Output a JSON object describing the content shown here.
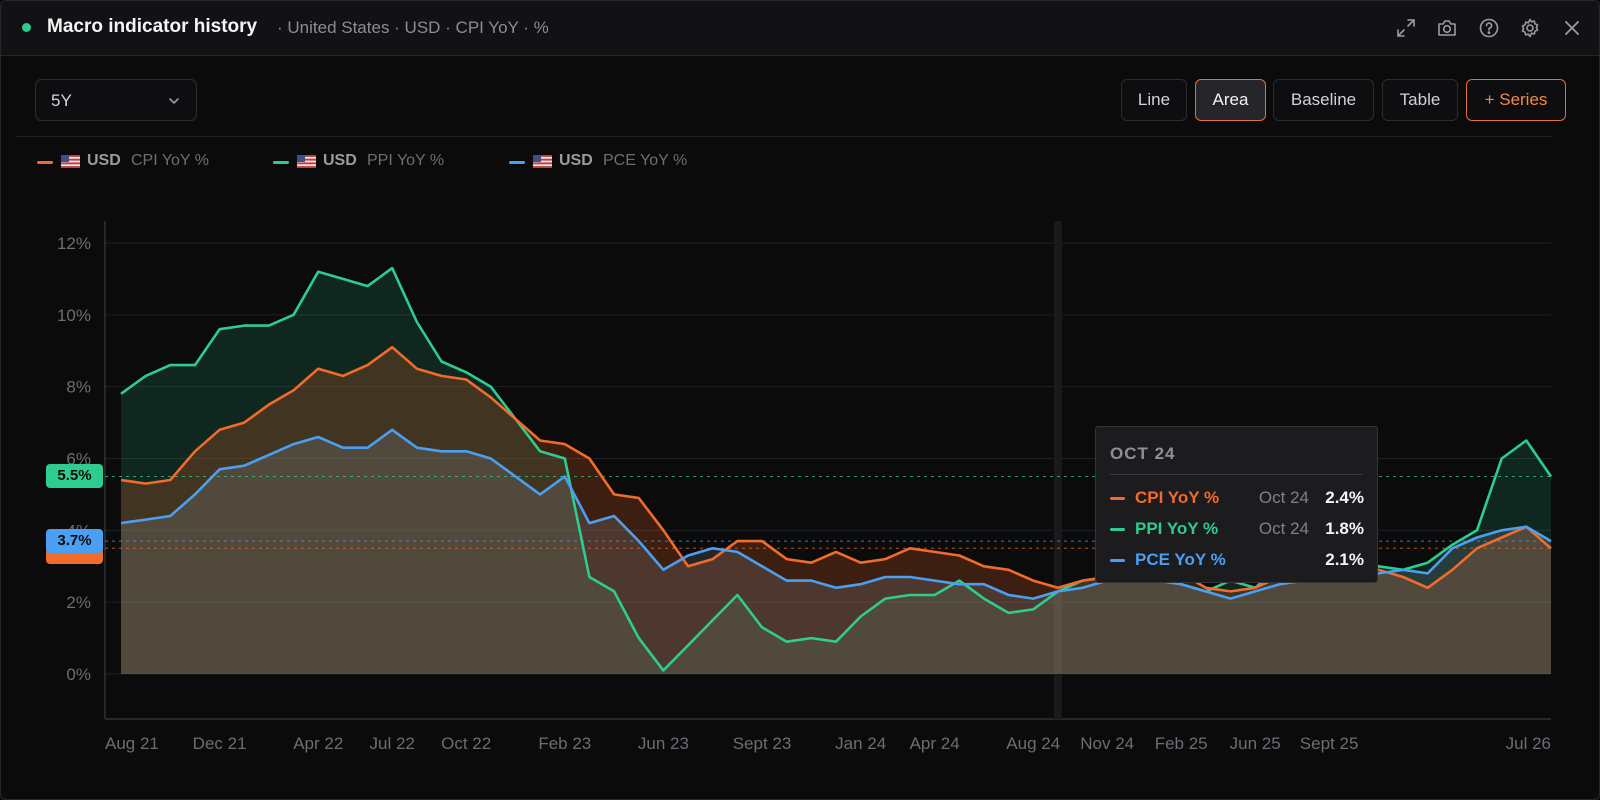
{
  "window": {
    "title": "Macro indicator history",
    "subtitle": "· United States · USD · CPI YoY · %",
    "icons": [
      "expand-icon",
      "camera-icon",
      "help-icon",
      "settings-icon",
      "close-icon"
    ]
  },
  "toolbar": {
    "range": "5Y",
    "chart_types": [
      {
        "label": "Line",
        "active": false
      },
      {
        "label": "Area",
        "active": true
      },
      {
        "label": "Baseline",
        "active": false
      },
      {
        "label": "Table",
        "active": false
      }
    ],
    "add_series_label": "+ Series"
  },
  "legend": [
    {
      "code": "USD",
      "name": "CPI YoY %",
      "color": "#f26b2a"
    },
    {
      "code": "USD",
      "name": "PPI YoY %",
      "color": "#2ecc8f"
    },
    {
      "code": "USD",
      "name": "PCE YoY %",
      "color": "#4b9ff2"
    }
  ],
  "price_tags": [
    {
      "label": "5.5%",
      "color": "#2ecc8f"
    },
    {
      "label": "3.7%",
      "color": "#4b9ff2"
    },
    {
      "label": "",
      "color": "#f26b2a"
    }
  ],
  "tooltip": {
    "header": "OCT 24",
    "rows": [
      {
        "label": "CPI YoY %",
        "date": "Oct 24",
        "value": "2.4%",
        "color": "#f26b2a"
      },
      {
        "label": "PPI YoY %",
        "date": "Oct 24",
        "value": "1.8%",
        "color": "#2ecc8f"
      },
      {
        "label": "PCE YoY %",
        "date": "",
        "value": "2.1%",
        "color": "#4b9ff2"
      }
    ]
  },
  "chart_data": {
    "type": "area",
    "x_ticks": [
      "Aug 21",
      "Dec 21",
      "Apr 22",
      "Jul 22",
      "Oct 22",
      "Feb 23",
      "Jun 23",
      "Sept 23",
      "Jan 24",
      "Apr 24",
      "Aug 24",
      "Nov 24",
      "Feb 25",
      "Jun 25",
      "Sept 25",
      "Jul 26"
    ],
    "y_ticks": [
      "0%",
      "2%",
      "4%",
      "6%",
      "8%",
      "10%",
      "12%"
    ],
    "ylim": [
      0,
      12
    ],
    "grid": true,
    "crosshair_x": "Oct 24",
    "reference_lines": [
      {
        "series": "PPI YoY %",
        "value": 5.5
      },
      {
        "series": "PCE YoY %",
        "value": 3.7
      },
      {
        "series": "CPI YoY %",
        "value": 3.5
      }
    ],
    "series": [
      {
        "name": "CPI YoY %",
        "color": "#f26b2a",
        "values": [
          5.4,
          5.3,
          5.4,
          6.2,
          6.8,
          7.0,
          7.5,
          7.9,
          8.5,
          8.3,
          8.6,
          9.1,
          8.5,
          8.3,
          8.2,
          7.7,
          7.1,
          6.5,
          6.4,
          6.0,
          5.0,
          4.9,
          4.0,
          3.0,
          3.2,
          3.7,
          3.7,
          3.2,
          3.1,
          3.4,
          3.1,
          3.2,
          3.5,
          3.4,
          3.3,
          3.0,
          2.9,
          2.6,
          2.4,
          2.6,
          2.7,
          2.9,
          3.0,
          2.8,
          2.4,
          2.3,
          2.4,
          2.7,
          2.7,
          2.9,
          3.0,
          2.9,
          2.7,
          2.4,
          2.9,
          3.5,
          3.8,
          4.1,
          3.5
        ]
      },
      {
        "name": "PPI YoY %",
        "color": "#2ecc8f",
        "values": [
          7.8,
          8.3,
          8.6,
          8.6,
          9.6,
          9.7,
          9.7,
          10.0,
          11.2,
          11.0,
          10.8,
          11.3,
          9.8,
          8.7,
          8.4,
          8.0,
          7.1,
          6.2,
          6.0,
          2.7,
          2.3,
          1.0,
          0.1,
          0.8,
          1.5,
          2.2,
          1.3,
          0.9,
          1.0,
          0.9,
          1.6,
          2.1,
          2.2,
          2.2,
          2.6,
          2.1,
          1.7,
          1.8,
          2.3,
          2.6,
          2.7,
          2.9,
          2.7,
          2.5,
          2.3,
          2.6,
          2.4,
          3.0,
          2.9,
          3.0,
          2.8,
          3.0,
          2.9,
          3.1,
          3.6,
          4.0,
          6.0,
          6.5,
          5.5
        ]
      },
      {
        "name": "PCE YoY %",
        "color": "#4b9ff2",
        "values": [
          4.2,
          4.3,
          4.4,
          5.0,
          5.7,
          5.8,
          6.1,
          6.4,
          6.6,
          6.3,
          6.3,
          6.8,
          6.3,
          6.2,
          6.2,
          6.0,
          5.5,
          5.0,
          5.5,
          4.2,
          4.4,
          3.7,
          2.9,
          3.3,
          3.5,
          3.4,
          3.0,
          2.6,
          2.6,
          2.4,
          2.5,
          2.7,
          2.7,
          2.6,
          2.5,
          2.5,
          2.2,
          2.1,
          2.3,
          2.4,
          2.6,
          2.7,
          2.6,
          2.5,
          2.3,
          2.1,
          2.3,
          2.5,
          2.6,
          2.7,
          2.8,
          2.8,
          2.9,
          2.8,
          3.5,
          3.8,
          4.0,
          4.1,
          3.7
        ]
      }
    ]
  }
}
